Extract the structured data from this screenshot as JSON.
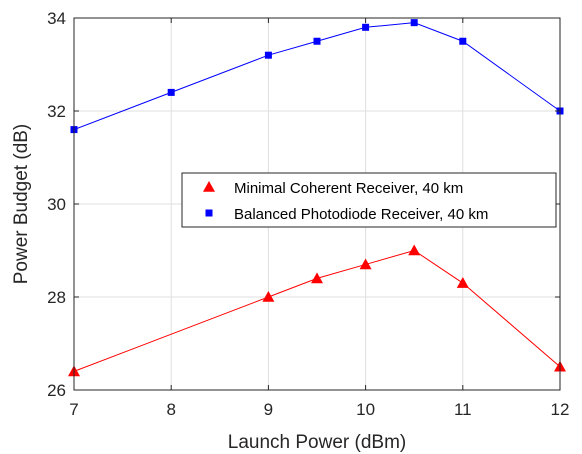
{
  "chart_data": {
    "type": "line",
    "xlabel": "Launch Power (dBm)",
    "ylabel": "Power Budget (dB)",
    "xlim": [
      7,
      12
    ],
    "ylim": [
      26,
      34
    ],
    "xticks": [
      7,
      8,
      9,
      10,
      11,
      12
    ],
    "yticks": [
      26,
      28,
      30,
      32,
      34
    ],
    "grid": true,
    "legend_position": "center-right",
    "series": [
      {
        "name": "Minimal Coherent Receiver, 40 km",
        "color": "#ff0000",
        "marker": "triangle",
        "x": [
          7,
          9,
          9.5,
          10,
          10.5,
          11,
          12
        ],
        "y": [
          26.4,
          28.0,
          28.4,
          28.7,
          29.0,
          28.3,
          26.5
        ]
      },
      {
        "name": "Balanced Photodiode Receiver, 40 km",
        "color": "#0000ff",
        "marker": "square",
        "x": [
          7,
          8,
          9,
          9.5,
          10,
          10.5,
          11,
          12
        ],
        "y": [
          31.6,
          32.4,
          33.2,
          33.5,
          33.8,
          33.9,
          33.5,
          32.0
        ]
      }
    ]
  }
}
